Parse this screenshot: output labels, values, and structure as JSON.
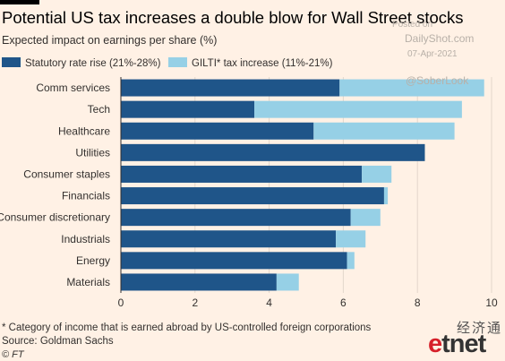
{
  "header": {
    "title": "Potential US tax increases a double blow for Wall Street stocks",
    "subtitle": "Expected impact on earnings per share (%)"
  },
  "legend": {
    "series1": "Statutory rate rise (21%-28%)",
    "series2": "GILTI* tax increase (11%-21%)"
  },
  "watermark": {
    "posted_on": "Posted on",
    "site": "DailyShot.com",
    "date": "07-Apr-2021",
    "handle": "@SoberLook"
  },
  "footer": {
    "footnote": "* Category of income that is earned abroad by US-controlled foreign corporations",
    "source": "Source: Goldman Sachs",
    "copyright": "© FT"
  },
  "branding": {
    "chinese": "经济通",
    "logo_e": "e",
    "logo_rest": "tnet"
  },
  "colors": {
    "series1": "#1f5589",
    "series2": "#96d0e6",
    "background": "#fff1e5"
  },
  "chart_data": {
    "type": "bar",
    "orientation": "horizontal",
    "stacked": true,
    "categories": [
      "Comm services",
      "Tech",
      "Healthcare",
      "Utilities",
      "Consumer staples",
      "Financials",
      "Consumer discretionary",
      "Industrials",
      "Energy",
      "Materials"
    ],
    "series": [
      {
        "name": "Statutory rate rise (21%-28%)",
        "values": [
          5.9,
          3.6,
          5.2,
          8.2,
          6.5,
          7.1,
          6.2,
          5.8,
          6.1,
          4.2
        ]
      },
      {
        "name": "GILTI* tax increase (11%-21%)",
        "values": [
          3.9,
          5.6,
          3.8,
          0.0,
          0.8,
          0.1,
          0.8,
          0.8,
          0.2,
          0.6
        ]
      }
    ],
    "xlim": [
      0,
      10
    ],
    "xticks": [
      0,
      2,
      4,
      6,
      8,
      10
    ],
    "grid": true,
    "legend_position": "top-left"
  }
}
